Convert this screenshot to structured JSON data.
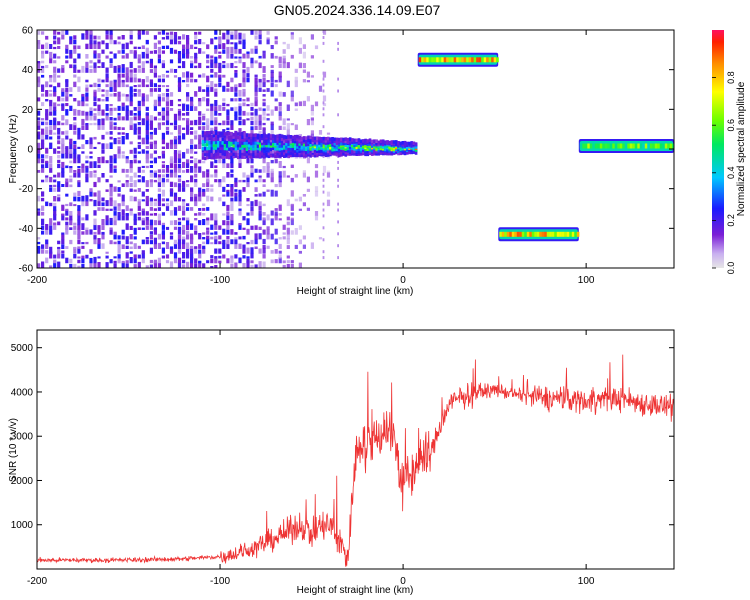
{
  "figure": {
    "title": "GN05.2024.336.14.09.E07"
  },
  "chart_data": [
    {
      "type": "heatmap",
      "xlabel": "Height of straight line (km)",
      "ylabel": "Frequency (Hz)",
      "xlim": [
        -200,
        148
      ],
      "ylim": [
        -60,
        60
      ],
      "xticks": [
        -200,
        -100,
        0,
        100
      ],
      "yticks": [
        -60,
        -40,
        -20,
        0,
        20,
        40,
        60
      ],
      "grid": false,
      "colormap": [
        "#e8e8e8",
        "#7b1fd6",
        "#1a1aff",
        "#00bfff",
        "#00ff00",
        "#ffff00",
        "#ff8c00",
        "#ff0000"
      ],
      "colorbar": {
        "label": "Normalized spectral amplitude",
        "range": [
          0,
          1
        ],
        "ticks": [
          0.0,
          0.2,
          0.4,
          0.6,
          0.8
        ]
      },
      "features": {
        "noise_region": {
          "x_range": [
            -200,
            -85
          ],
          "amplitude": 0.12
        },
        "drifting_track": {
          "x_range": [
            -110,
            7
          ],
          "freq_start": 2,
          "freq_end": 0.5,
          "amplitude": 0.6
        },
        "segments": [
          {
            "x_range": [
              8,
              52
            ],
            "freq": 45,
            "amplitude": 0.95
          },
          {
            "x_range": [
              52,
              96
            ],
            "freq": -43,
            "amplitude": 0.95
          },
          {
            "x_range": [
              96,
              148
            ],
            "freq": 1.5,
            "amplitude": 0.7
          }
        ]
      }
    },
    {
      "type": "line",
      "xlabel": "Height of straight line (km)",
      "ylabel": "SNR (10 * v/v)",
      "xlim": [
        -200,
        148
      ],
      "ylim": [
        0,
        5400
      ],
      "xticks": [
        -200,
        -100,
        0,
        100
      ],
      "yticks": [
        1000,
        2000,
        3000,
        4000,
        5000
      ],
      "grid": false,
      "line_color": "#ee3333",
      "series": [
        {
          "x": [
            -200,
            -180,
            -160,
            -140,
            -120,
            -100,
            -90,
            -80,
            -70,
            -60,
            -55,
            -50,
            -45,
            -40,
            -35,
            -30,
            -28,
            -25,
            -22,
            -20,
            -15,
            -10,
            -5,
            0,
            5,
            10,
            15,
            20,
            25,
            30,
            40,
            50,
            60,
            70,
            80,
            90,
            100,
            110,
            120,
            130,
            140,
            148
          ],
          "values": [
            200,
            200,
            200,
            210,
            230,
            280,
            350,
            500,
            700,
            900,
            1000,
            800,
            950,
            1000,
            600,
            300,
            1500,
            2800,
            3000,
            2600,
            3000,
            3200,
            3000,
            1800,
            2200,
            2500,
            2600,
            3200,
            3700,
            3850,
            4000,
            4050,
            3950,
            3900,
            3850,
            3850,
            3800,
            3850,
            3850,
            3750,
            3700,
            3600
          ]
        }
      ]
    }
  ]
}
